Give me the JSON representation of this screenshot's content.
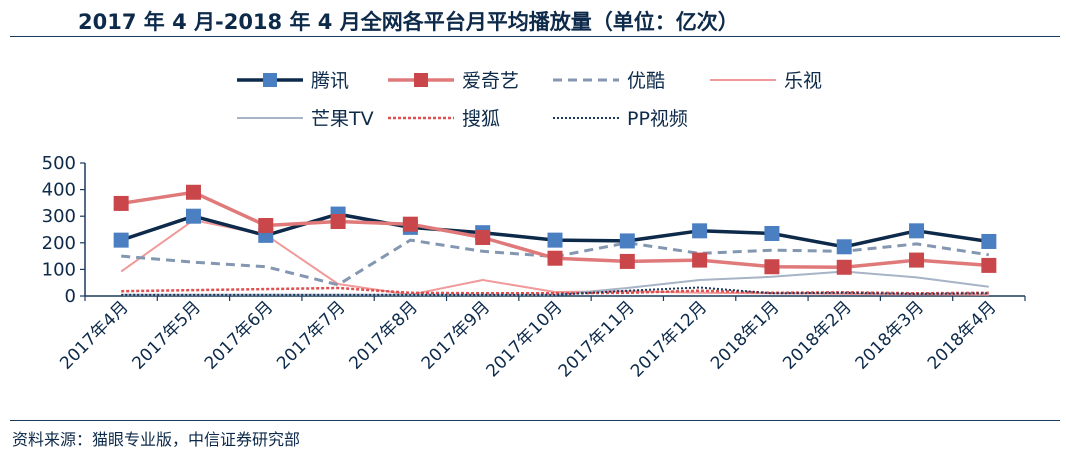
{
  "title": "2017 年 4 月-2018 年 4 月全网各平台月平均播放量（单位：亿次）",
  "source": "资料来源：猫眼专业版，中信证券研究部",
  "chart_data": {
    "type": "line",
    "categories": [
      "2017年4月",
      "2017年5月",
      "2017年6月",
      "2017年7月",
      "2017年8月",
      "2017年9月",
      "2017年10月",
      "2017年11月",
      "2017年12月",
      "2018年1月",
      "2018年2月",
      "2018年3月",
      "2018年4月"
    ],
    "ylim": [
      0,
      500
    ],
    "yticks": [
      0,
      100,
      200,
      300,
      400,
      500
    ],
    "grid": false,
    "legend_position": "top",
    "series": [
      {
        "name": "腾讯",
        "color": "#0d2a4a",
        "style": "solid-marker",
        "marker_color": "#4a7fc1",
        "values": [
          210,
          300,
          228,
          308,
          258,
          238,
          210,
          207,
          245,
          235,
          185,
          245,
          205
        ]
      },
      {
        "name": "爱奇艺",
        "color": "#e07a7a",
        "style": "solid-marker",
        "marker_color": "#c9474a",
        "values": [
          348,
          390,
          265,
          280,
          270,
          220,
          142,
          130,
          135,
          110,
          108,
          135,
          115
        ]
      },
      {
        "name": "优酷",
        "color": "#8497b0",
        "style": "dashed-thick",
        "values": [
          150,
          127,
          110,
          42,
          210,
          168,
          148,
          200,
          160,
          172,
          168,
          196,
          155
        ]
      },
      {
        "name": "乐视",
        "color": "#f09a9a",
        "style": "solid-thin",
        "values": [
          92,
          285,
          230,
          45,
          5,
          60,
          15,
          18,
          12,
          10,
          8,
          6,
          5
        ]
      },
      {
        "name": "芒果TV",
        "color": "#a6b4c6",
        "style": "solid-thin",
        "values": [
          5,
          5,
          5,
          5,
          5,
          5,
          5,
          30,
          60,
          72,
          92,
          70,
          35
        ]
      },
      {
        "name": "搜狐",
        "color": "#e05050",
        "style": "dotted-red",
        "values": [
          18,
          22,
          26,
          30,
          12,
          10,
          10,
          12,
          20,
          12,
          14,
          10,
          12
        ]
      },
      {
        "name": "PP视频",
        "color": "#1b3a5e",
        "style": "dotted-navy",
        "values": [
          4,
          4,
          4,
          4,
          4,
          4,
          4,
          20,
          32,
          10,
          12,
          8,
          10
        ]
      }
    ]
  }
}
